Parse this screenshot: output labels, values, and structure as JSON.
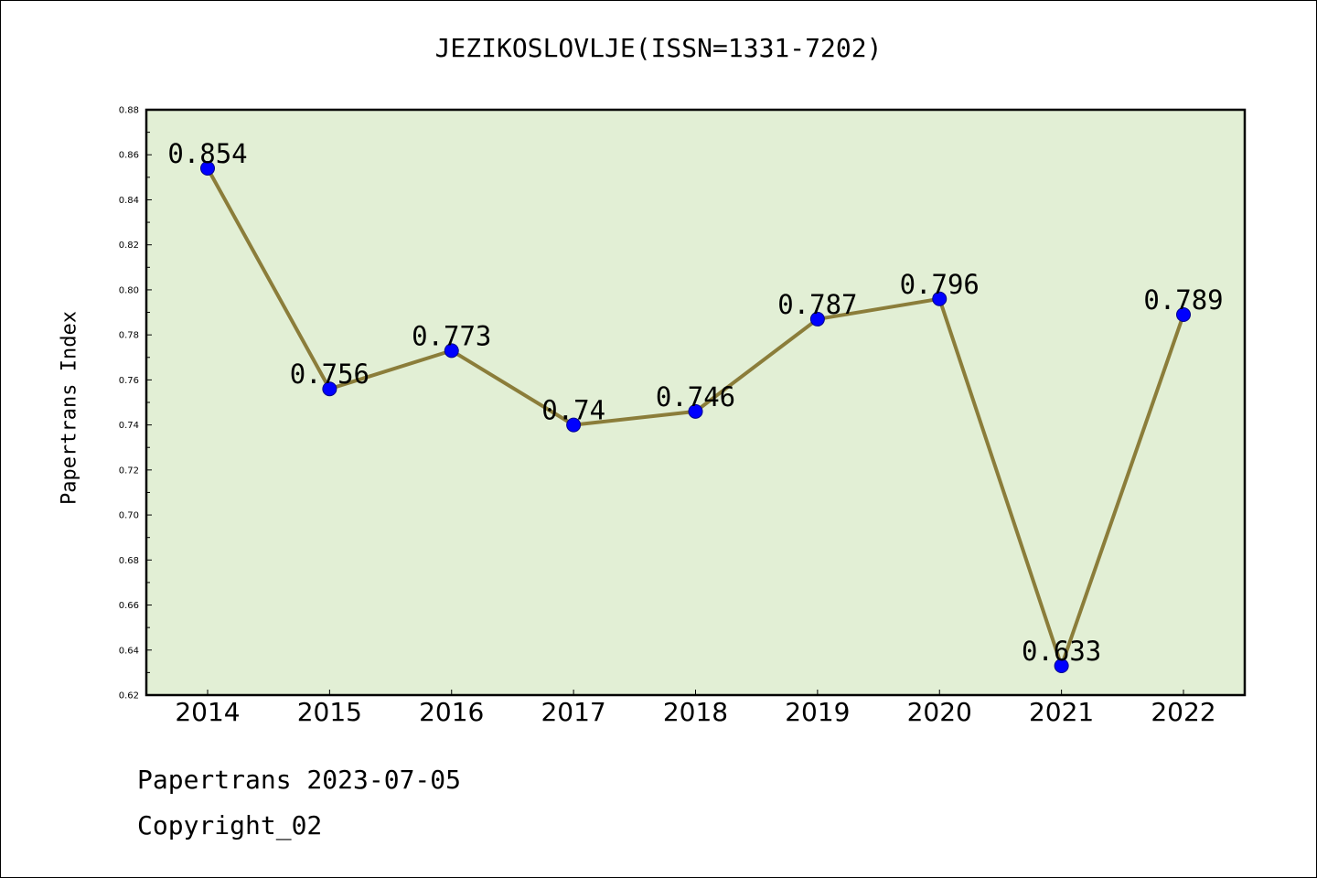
{
  "chart_data": {
    "type": "line",
    "title": "JEZIKOSLOVLJE(ISSN=1331-7202)",
    "ylabel": "Papertrans Index",
    "xlabel": "",
    "categories": [
      "2014",
      "2015",
      "2016",
      "2017",
      "2018",
      "2019",
      "2020",
      "2021",
      "2022"
    ],
    "series": [
      {
        "values": [
          0.854,
          0.756,
          0.773,
          0.74,
          0.746,
          0.787,
          0.796,
          0.633,
          0.789
        ],
        "labels": [
          "0.854",
          "0.756",
          "0.773",
          "0.74",
          "0.746",
          "0.787",
          "0.796",
          "0.633",
          "0.789"
        ]
      }
    ],
    "ylim": [
      0.62,
      0.88
    ],
    "yticks": [
      "0.62",
      "0.64",
      "0.66",
      "0.68",
      "0.70",
      "0.72",
      "0.74",
      "0.76",
      "0.78",
      "0.80",
      "0.82",
      "0.84",
      "0.86",
      "0.88"
    ],
    "grid": false,
    "colors": {
      "line": "#8B7D3A",
      "marker": "#0000FF",
      "plot_background": "#E2EFD5"
    }
  },
  "footer": {
    "date_line": "Papertrans 2023-07-05",
    "copyright": "Copyright_02"
  }
}
